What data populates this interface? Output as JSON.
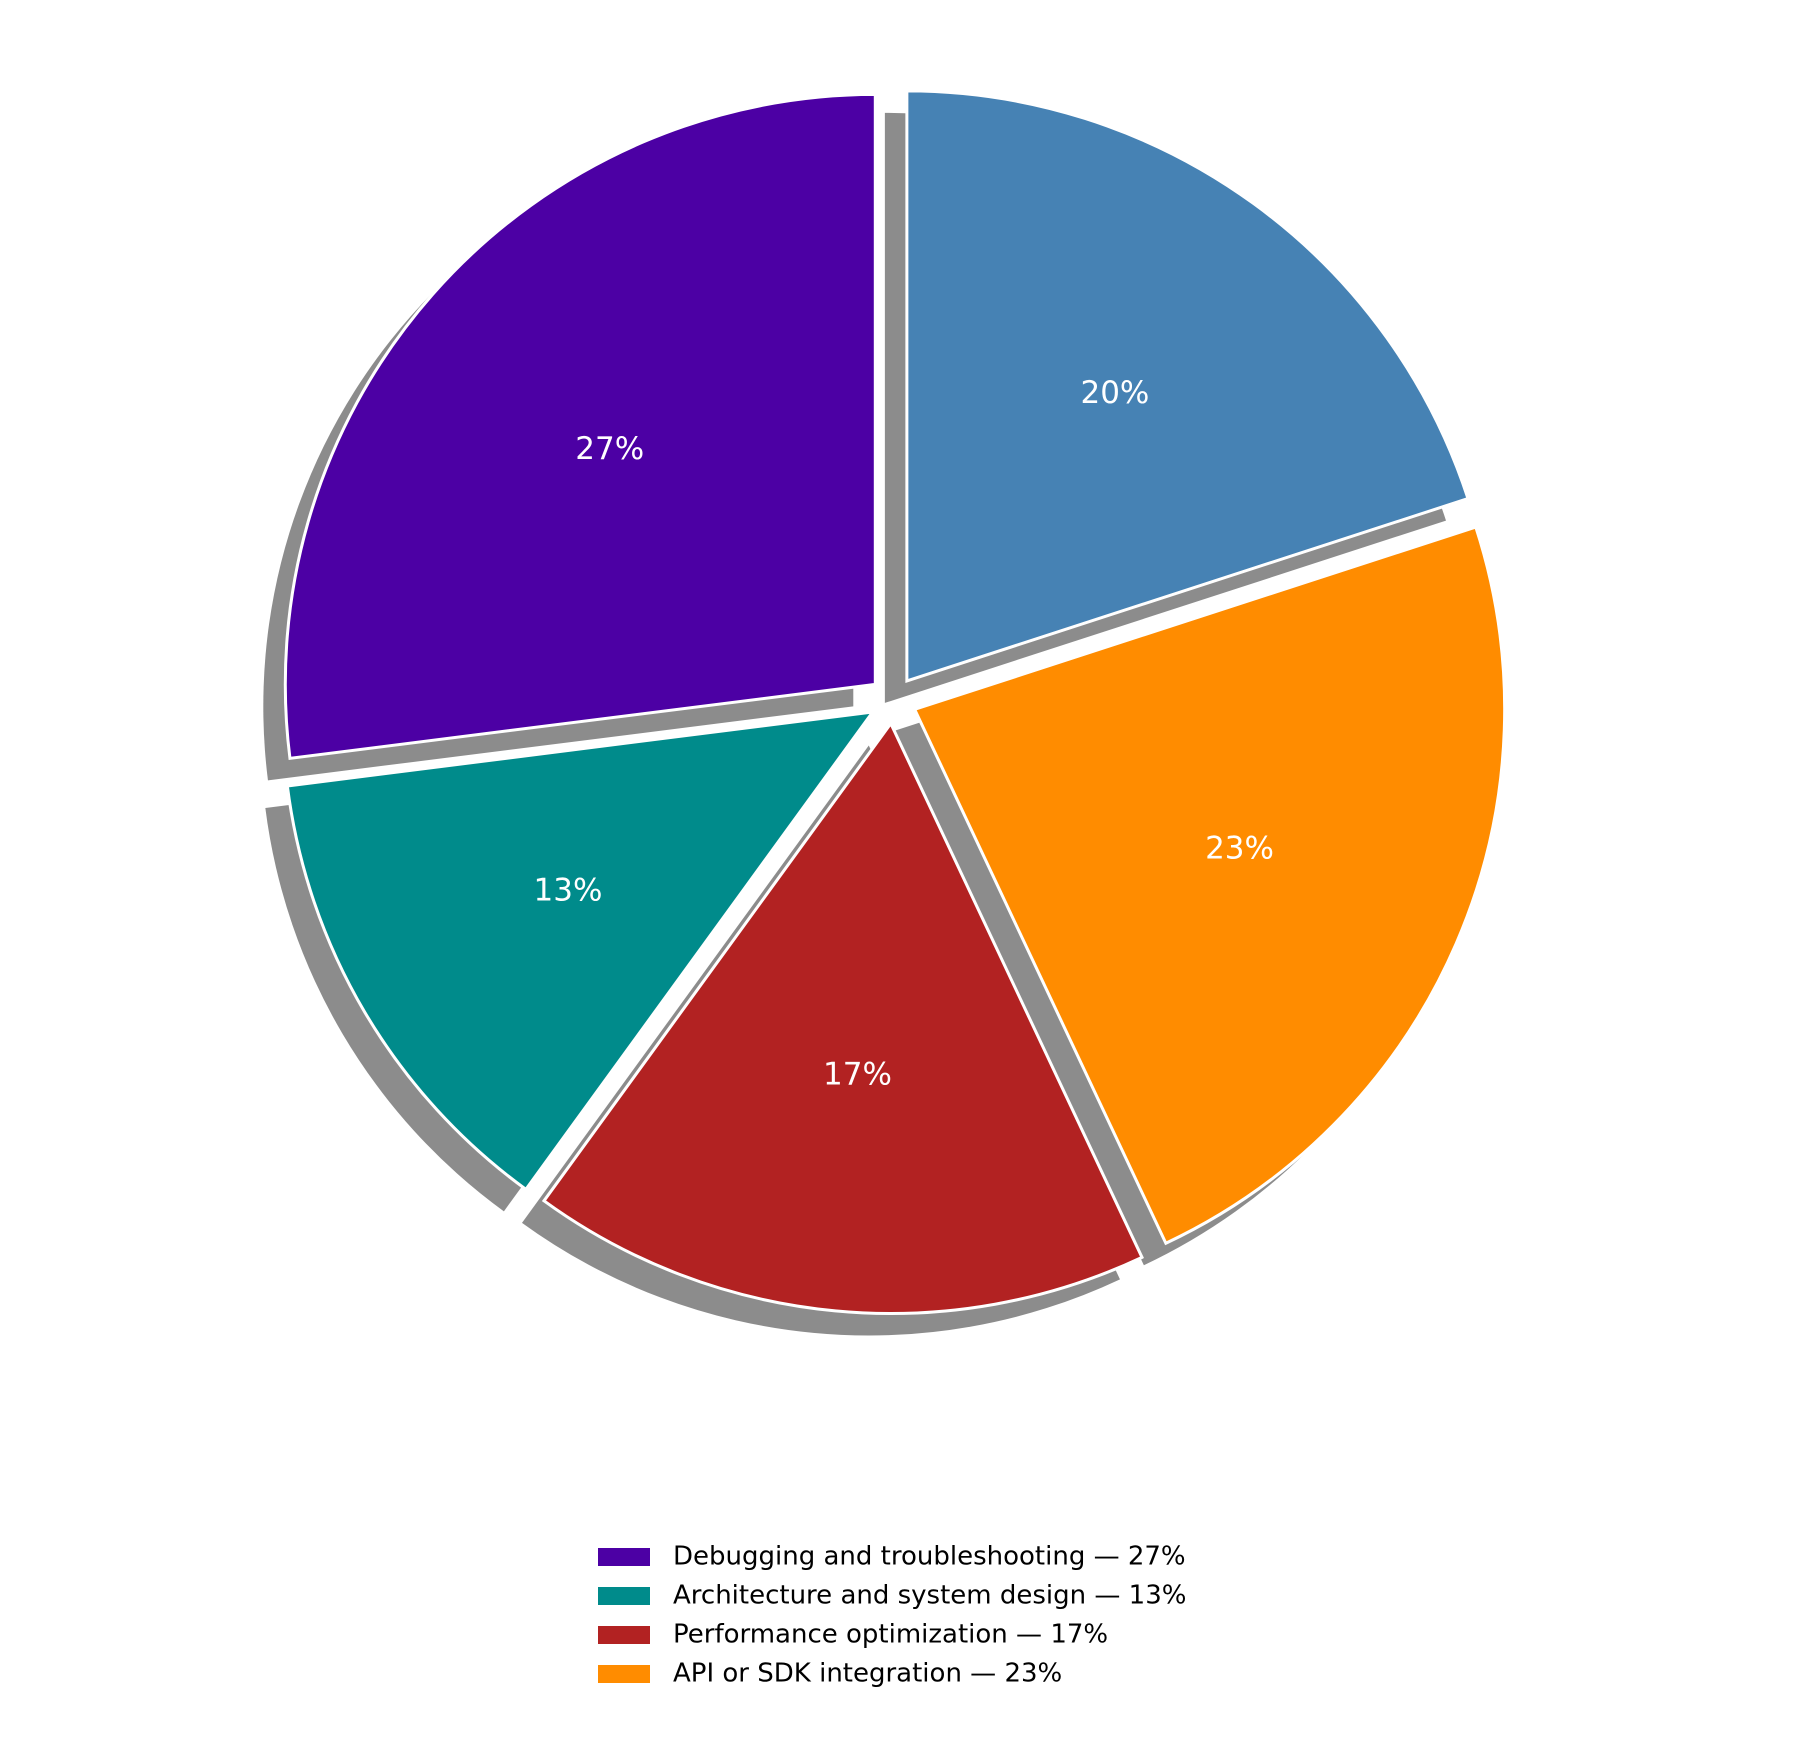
{
  "chart_data": {
    "type": "pie",
    "categories": [
      "Debugging and troubleshooting — 27%",
      "Architecture and system design — 13%",
      "Performance optimization — 17%",
      "API or SDK integration — 23%",
      null
    ],
    "values": [
      27,
      13,
      17,
      23,
      20
    ],
    "value_labels": [
      "27%",
      "13%",
      "17%",
      "23%",
      "20%"
    ],
    "colors": [
      "#4c00a4",
      "#008b8b",
      "#b22222",
      "#ff8c00",
      "#4682b4"
    ],
    "start_angle": 90,
    "explode": true,
    "shadow": true,
    "legend": "lower center"
  }
}
